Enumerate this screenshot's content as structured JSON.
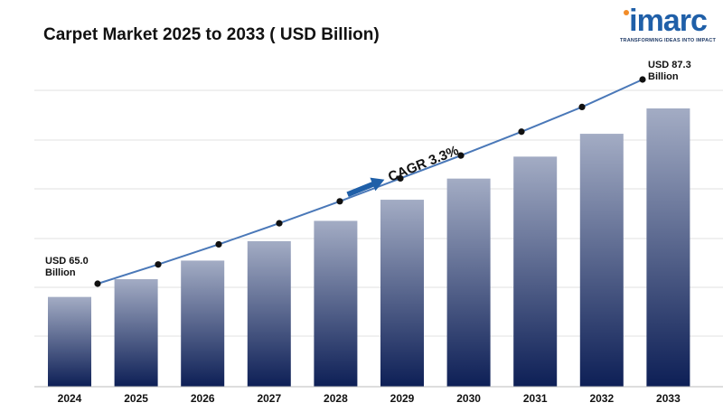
{
  "title": "Carpet Market 2025 to 2033 ( USD Billion)",
  "logo": {
    "name": "imarc",
    "tagline": "TRANSFORMING IDEAS INTO IMPACT",
    "color": "#1f5fa8",
    "accent": "#f28c28"
  },
  "annotations": {
    "start_value": "USD 65.0",
    "start_unit": "Billion",
    "end_value": "USD 87.3",
    "end_unit": "Billion",
    "cagr": "CAGR 3.3%"
  },
  "chart_data": {
    "type": "bar",
    "title": "Carpet Market 2025 to 2033 ( USD Billion)",
    "categories": [
      "2024",
      "2025",
      "2026",
      "2027",
      "2028",
      "2029",
      "2030",
      "2031",
      "2032",
      "2033"
    ],
    "series": [
      {
        "type": "bar",
        "values": [
          65.0,
          67.1,
          69.3,
          71.6,
          74.0,
          76.5,
          79.0,
          81.6,
          84.3,
          87.3
        ]
      },
      {
        "type": "line",
        "values": [
          65.0,
          67.1,
          69.3,
          71.6,
          74.0,
          76.5,
          79.0,
          81.6,
          84.3,
          87.3
        ]
      }
    ],
    "grid": true,
    "legend": "none",
    "colors": {
      "bar_top": "#a3acc4",
      "bar_bottom": "#0d1f56",
      "line": "#4a78b8",
      "marker": "#111111",
      "arrow": "#1f5fa8"
    }
  }
}
